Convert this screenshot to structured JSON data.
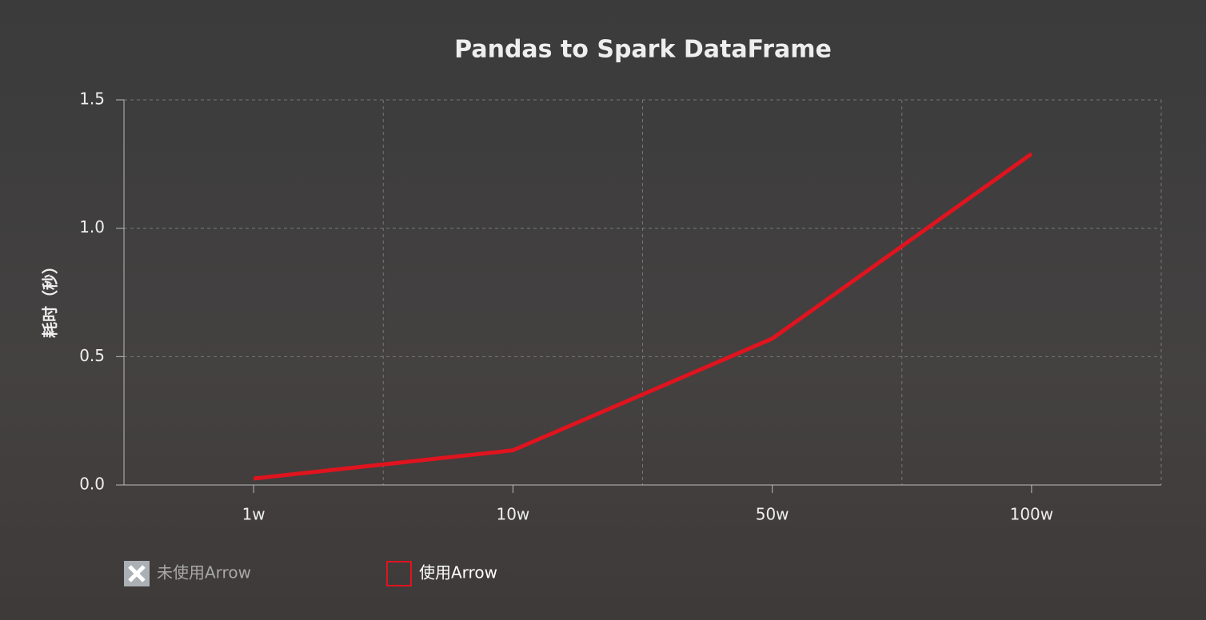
{
  "chart_data": {
    "type": "line",
    "title": "Pandas to Spark DataFrame",
    "ylabel": "耗时（秒）",
    "categories": [
      "1w",
      "10w",
      "50w",
      "100w"
    ],
    "series": [
      {
        "name": "未使用Arrow",
        "visible": false,
        "values": [
          null,
          null,
          null,
          null
        ]
      },
      {
        "name": "使用Arrow",
        "color": "#e0141e",
        "visible": true,
        "values": [
          0.025,
          0.135,
          0.57,
          1.29
        ]
      }
    ],
    "ylim": [
      0,
      1.5
    ],
    "yticks": [
      {
        "value": 0,
        "label": "0.0"
      },
      0.5,
      {
        "value": 1,
        "label": "1.0"
      },
      1.5
    ],
    "grid": true
  }
}
